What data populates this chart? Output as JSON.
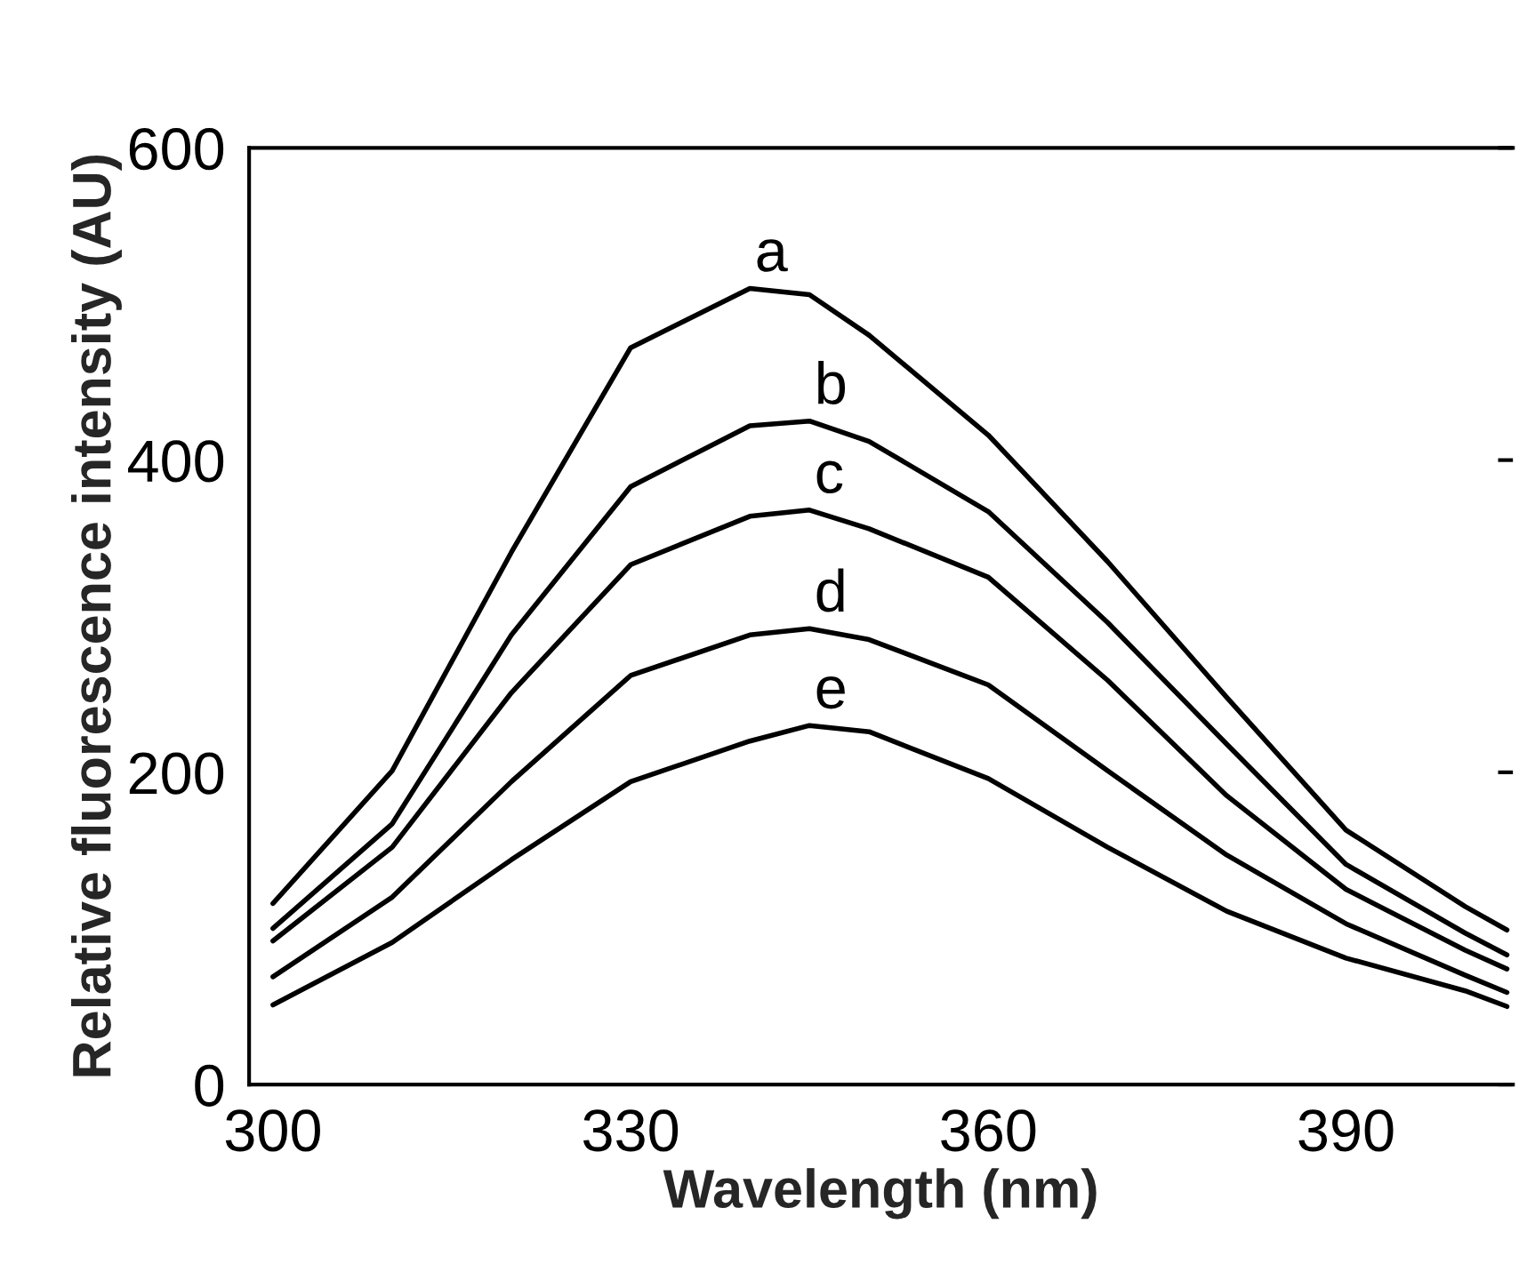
{
  "chart_data": {
    "type": "line",
    "xlabel": "Wavelength (nm)",
    "ylabel": "Relative fluorescence intensity (AU)",
    "xlim": [
      298,
      404
    ],
    "ylim": [
      0,
      600
    ],
    "xticks": [
      300,
      330,
      360,
      390
    ],
    "yticks": [
      0,
      200,
      400,
      600
    ],
    "grid": false,
    "legend": false,
    "marker": "none",
    "line_style": "solid",
    "x": [
      300,
      310,
      320,
      330,
      340,
      345,
      350,
      360,
      370,
      380,
      390,
      400,
      403.5
    ],
    "series": [
      {
        "name": "a",
        "color": "#000000",
        "values": [
          116,
          201,
          341,
          472,
          510,
          506,
          480,
          416,
          335,
          248,
          163,
          114,
          99
        ]
      },
      {
        "name": "b",
        "color": "#000000",
        "values": [
          100,
          167,
          288,
          383,
          422,
          425,
          412,
          367,
          296,
          218,
          141,
          97,
          83
        ]
      },
      {
        "name": "c",
        "color": "#000000",
        "values": [
          92,
          152,
          251,
          333,
          364,
          368,
          356,
          325,
          259,
          185,
          125,
          86,
          74
        ]
      },
      {
        "name": "d",
        "color": "#000000",
        "values": [
          69,
          120,
          194,
          262,
          288,
          292,
          285,
          256,
          201,
          147,
          103,
          70,
          59
        ]
      },
      {
        "name": "e",
        "color": "#000000",
        "values": [
          51,
          91,
          144,
          194,
          220,
          230,
          226,
          196,
          152,
          111,
          81,
          60,
          50
        ]
      }
    ]
  }
}
